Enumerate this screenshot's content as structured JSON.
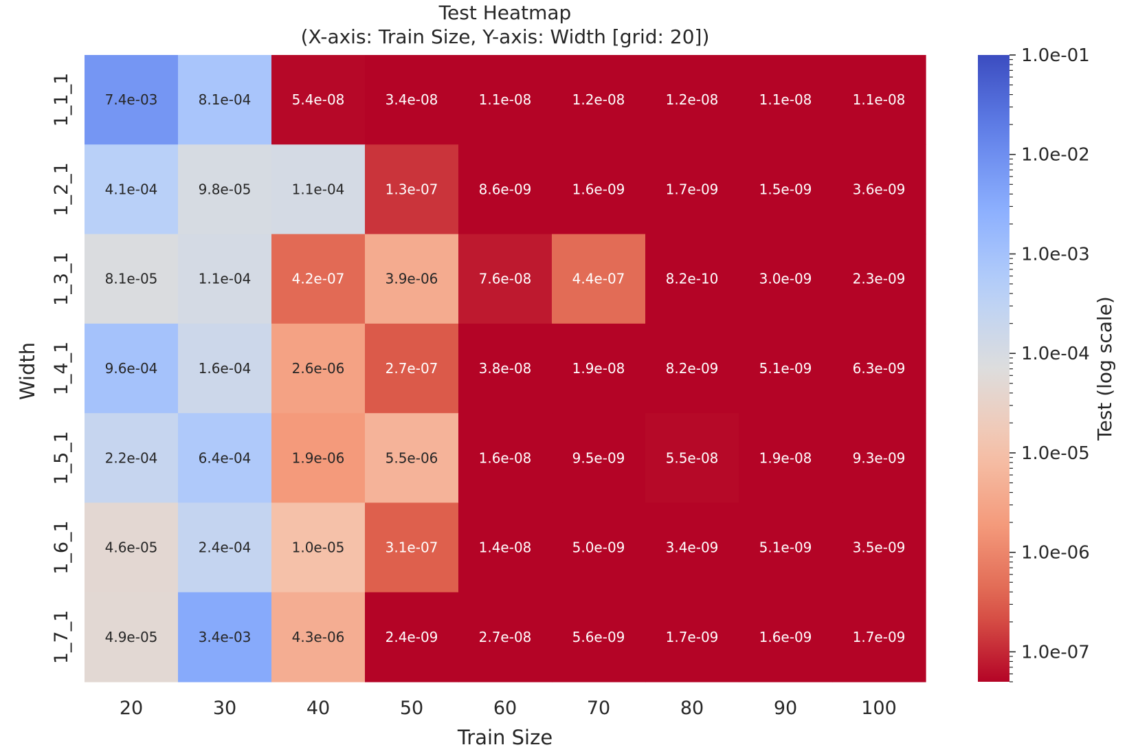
{
  "chart_data": {
    "type": "heatmap",
    "title": "Test Heatmap",
    "subtitle": "(X-axis: Train Size, Y-axis: Width [grid: 20])",
    "xlabel": "Train Size",
    "ylabel": "Width",
    "x_categories": [
      "20",
      "30",
      "40",
      "50",
      "60",
      "70",
      "80",
      "90",
      "100"
    ],
    "y_categories": [
      "1_1_1",
      "1_2_1",
      "1_3_1",
      "1_4_1",
      "1_5_1",
      "1_6_1",
      "1_7_1"
    ],
    "values": [
      [
        0.0074,
        0.00081,
        5.4e-08,
        3.4e-08,
        1.1e-08,
        1.2e-08,
        1.2e-08,
        1.1e-08,
        1.1e-08
      ],
      [
        0.00041,
        9.8e-05,
        0.00011,
        1.3e-07,
        8.6e-09,
        1.6e-09,
        1.7e-09,
        1.5e-09,
        3.6e-09
      ],
      [
        8.1e-05,
        0.00011,
        4.2e-07,
        3.9e-06,
        7.6e-08,
        4.4e-07,
        8.2e-10,
        3e-09,
        2.3e-09
      ],
      [
        0.00096,
        0.00016,
        2.6e-06,
        2.7e-07,
        3.8e-08,
        1.9e-08,
        8.2e-09,
        5.1e-09,
        6.3e-09
      ],
      [
        0.00022,
        0.00064,
        1.9e-06,
        5.5e-06,
        1.6e-08,
        9.5e-09,
        5.5e-08,
        1.9e-08,
        9.3e-09
      ],
      [
        4.6e-05,
        0.00024,
        1e-05,
        3.1e-07,
        1.4e-08,
        5e-09,
        3.4e-09,
        5.1e-09,
        3.5e-09
      ],
      [
        4.9e-05,
        0.0034,
        4.3e-06,
        2.4e-09,
        2.7e-08,
        5.6e-09,
        1.7e-09,
        1.6e-09,
        1.7e-09
      ]
    ],
    "labels": [
      [
        "7.4e-03",
        "8.1e-04",
        "5.4e-08",
        "3.4e-08",
        "1.1e-08",
        "1.2e-08",
        "1.2e-08",
        "1.1e-08",
        "1.1e-08"
      ],
      [
        "4.1e-04",
        "9.8e-05",
        "1.1e-04",
        "1.3e-07",
        "8.6e-09",
        "1.6e-09",
        "1.7e-09",
        "1.5e-09",
        "3.6e-09"
      ],
      [
        "8.1e-05",
        "1.1e-04",
        "4.2e-07",
        "3.9e-06",
        "7.6e-08",
        "4.4e-07",
        "8.2e-10",
        "3.0e-09",
        "2.3e-09"
      ],
      [
        "9.6e-04",
        "1.6e-04",
        "2.6e-06",
        "2.7e-07",
        "3.8e-08",
        "1.9e-08",
        "8.2e-09",
        "5.1e-09",
        "6.3e-09"
      ],
      [
        "2.2e-04",
        "6.4e-04",
        "1.9e-06",
        "5.5e-06",
        "1.6e-08",
        "9.5e-09",
        "5.5e-08",
        "1.9e-08",
        "9.3e-09"
      ],
      [
        "4.6e-05",
        "2.4e-04",
        "1.0e-05",
        "3.1e-07",
        "1.4e-08",
        "5.0e-09",
        "3.4e-09",
        "5.1e-09",
        "3.5e-09"
      ],
      [
        "4.9e-05",
        "3.4e-03",
        "4.3e-06",
        "2.4e-09",
        "2.7e-08",
        "5.6e-09",
        "1.7e-09",
        "1.6e-09",
        "1.7e-09"
      ]
    ],
    "colorbar": {
      "label": "Test (log scale)",
      "scale": "log",
      "vmin": 5e-08,
      "vmax": 0.1,
      "colormap": "coolwarm_r",
      "tick_values": [
        0.1,
        0.01,
        0.001,
        0.0001,
        1e-05,
        1e-06,
        1e-07
      ],
      "tick_labels": [
        "1.0e-01",
        "1.0e-02",
        "1.0e-03",
        "1.0e-04",
        "1.0e-05",
        "1.0e-06",
        "1.0e-07"
      ]
    },
    "colors": {
      "cold_end": "#3b4cc0",
      "neutral": "#dddddd",
      "hot_end": "#b40426"
    },
    "grid": false,
    "legend": "colorbar-right"
  }
}
